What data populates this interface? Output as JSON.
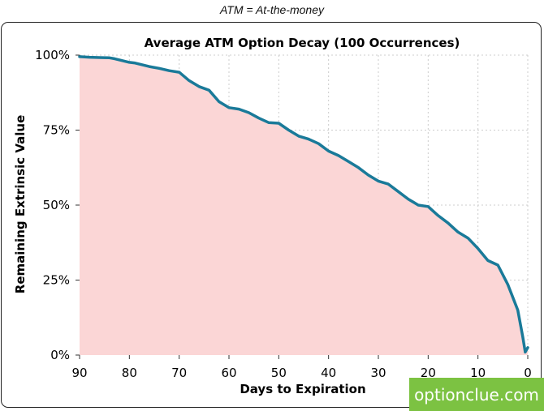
{
  "caption": "ATM = At-the-money",
  "watermark": "optionclue.com",
  "colors": {
    "line": "#1a7a99",
    "fill": "#fbd6d6",
    "grid": "#cccccc",
    "watermark_bg": "#7cc242"
  },
  "chart_data": {
    "type": "area",
    "title": "Average ATM Option Decay (100 Occurrences)",
    "xlabel": "Days to Expiration",
    "ylabel": "Remaining Extrinsic Value",
    "xlim": [
      90,
      0
    ],
    "ylim": [
      0,
      100
    ],
    "x_ticks": [
      90,
      80,
      70,
      60,
      50,
      40,
      30,
      20,
      10,
      0
    ],
    "y_ticks": [
      0,
      25,
      50,
      75,
      100
    ],
    "y_tick_labels": [
      "0%",
      "25%",
      "50%",
      "75%",
      "100%"
    ],
    "grid": true,
    "series": [
      {
        "x": [
          90,
          88,
          86,
          84,
          83,
          82,
          80,
          79,
          78,
          76,
          74,
          72,
          70,
          68,
          66,
          64,
          62,
          60,
          58,
          56,
          54,
          52,
          50,
          48,
          46,
          44,
          42,
          40,
          38,
          36,
          34,
          32,
          30,
          28,
          26,
          24,
          22,
          20,
          18,
          16,
          14,
          12,
          10,
          8,
          6,
          4,
          2,
          1,
          0.5,
          0
        ],
        "y": [
          99.5,
          99.3,
          99.2,
          99.1,
          98.8,
          98.4,
          97.6,
          97.4,
          97.0,
          96.2,
          95.6,
          94.8,
          94.3,
          91.5,
          89.5,
          88.3,
          84.5,
          82.5,
          82.0,
          80.8,
          79.0,
          77.5,
          77.3,
          75.0,
          73.0,
          72.0,
          70.5,
          68.0,
          66.5,
          64.5,
          62.5,
          60.0,
          58.0,
          57.0,
          54.5,
          52.0,
          50.0,
          49.5,
          46.5,
          44.0,
          41.0,
          39.0,
          35.5,
          31.5,
          30.0,
          23.5,
          15.0,
          6.0,
          1.0,
          2.5
        ]
      }
    ]
  }
}
